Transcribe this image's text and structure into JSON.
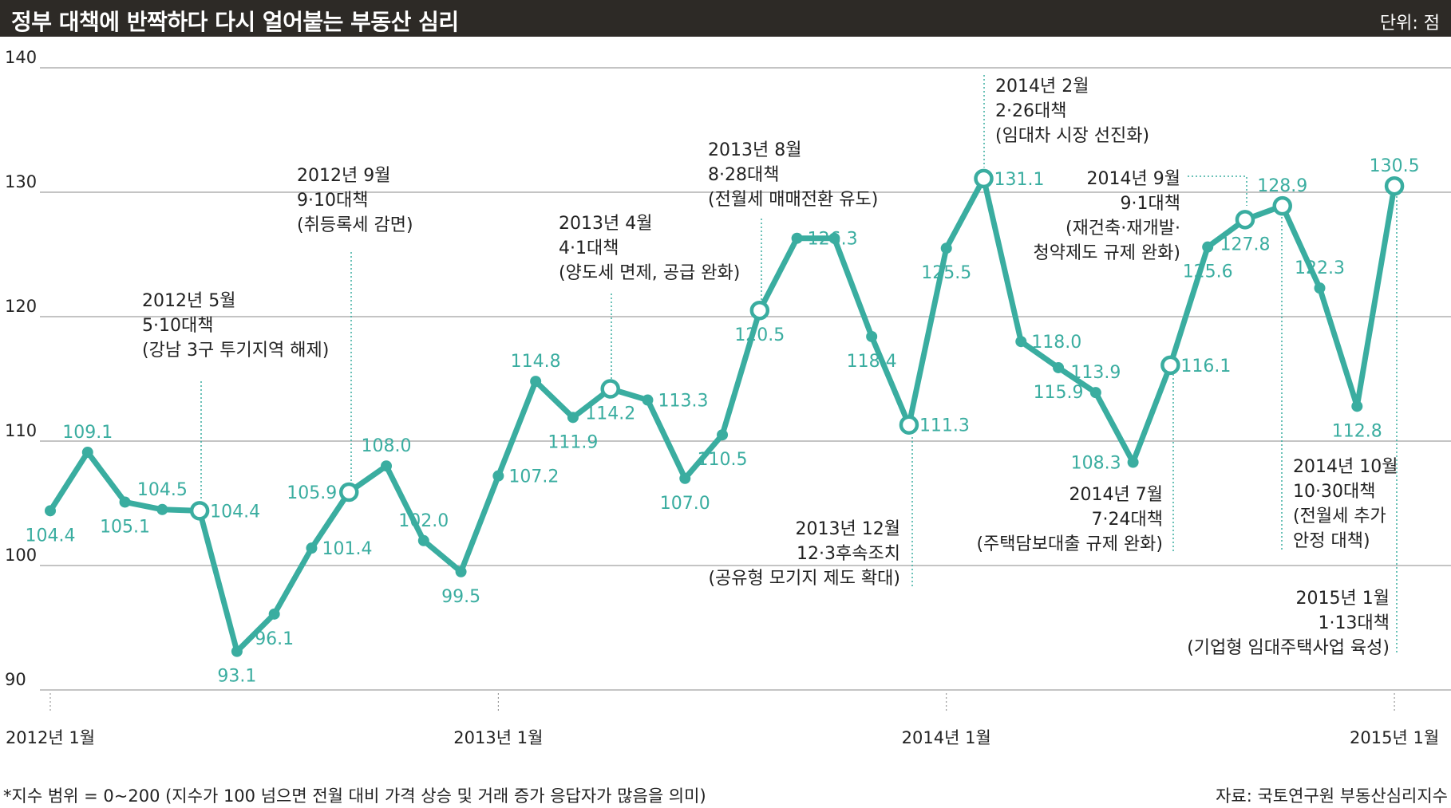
{
  "header": {
    "title": "정부 대책에 반짝하다 다시 얼어붙는 부동산 심리",
    "unit": "단위: 점"
  },
  "footer": {
    "note": "*지수 범위 = 0~200 (지수가 100 넘으면 전월 대비 가격 상승 및 거래 증가 응답자가 많음을 의미)",
    "source": "자료: 국토연구원 부동산심리지수"
  },
  "colors": {
    "line": "#3aada0",
    "value_label": "#3aada0",
    "grid": "#888888",
    "text": "#222222",
    "title_bg": "#2d2a26"
  },
  "chart_data": {
    "type": "line",
    "title": "정부 대책에 반짝하다 다시 얼어붙는 부동산 심리",
    "ylabel": "",
    "xlabel": "",
    "ylim": [
      90,
      140
    ],
    "yticks": [
      90,
      100,
      110,
      120,
      130,
      140
    ],
    "x_tick_labels": [
      {
        "index": 0,
        "label": "2012년 1월"
      },
      {
        "index": 12,
        "label": "2013년 1월"
      },
      {
        "index": 24,
        "label": "2014년 1월"
      },
      {
        "index": 36,
        "label": "2015년 1월"
      }
    ],
    "grid": true,
    "series": [
      {
        "months": [
          "2012-01",
          "2012-02",
          "2012-03",
          "2012-04",
          "2012-05",
          "2012-06",
          "2012-07",
          "2012-08",
          "2012-09",
          "2012-10",
          "2012-11",
          "2012-12",
          "2013-01",
          "2013-02",
          "2013-03",
          "2013-04",
          "2013-05",
          "2013-06",
          "2013-07",
          "2013-08",
          "2013-09",
          "2013-10",
          "2013-11",
          "2013-12",
          "2014-01",
          "2014-02",
          "2014-03",
          "2014-04",
          "2014-05",
          "2014-06",
          "2014-07",
          "2014-08",
          "2014-09",
          "2014-10",
          "2014-11",
          "2014-12",
          "2015-01"
        ],
        "values": [
          104.4,
          109.1,
          105.1,
          104.5,
          104.4,
          93.1,
          96.1,
          101.4,
          105.9,
          108.0,
          102.0,
          99.5,
          107.2,
          114.8,
          111.9,
          114.2,
          113.3,
          107.0,
          110.5,
          120.5,
          126.3,
          126.3,
          118.4,
          111.3,
          125.5,
          131.1,
          118.0,
          115.9,
          113.9,
          108.3,
          116.1,
          125.6,
          127.8,
          128.9,
          122.3,
          112.8,
          130.5
        ],
        "labels": [
          "104.4",
          "109.1",
          "105.1",
          "104.5",
          "104.4",
          "93.1",
          "96.1",
          "101.4",
          "105.9",
          "108.0",
          "102.0",
          "99.5",
          "107.2",
          "114.8",
          "111.9",
          "114.2",
          "113.3",
          "107.0",
          "110.5",
          "120.5",
          "126.3",
          "",
          "118.4",
          "111.3",
          "125.5",
          "131.1",
          "118.0",
          "115.9",
          "113.9",
          "108.3",
          "116.1",
          "125.6",
          "127.8",
          "128.9",
          "122.3",
          "112.8",
          "130.5"
        ],
        "label_pos": [
          "below",
          "above",
          "below",
          "above",
          "right",
          "below",
          "below",
          "right",
          "left",
          "above",
          "above",
          "below",
          "right",
          "above",
          "below",
          "below",
          "right",
          "below",
          "below",
          "below",
          "right",
          "none",
          "below",
          "right",
          "below",
          "right",
          "right",
          "below",
          "above",
          "left",
          "right",
          "below",
          "below",
          "above",
          "above",
          "below",
          "above"
        ],
        "event_points": [
          4,
          8,
          15,
          19,
          23,
          25,
          30,
          32,
          33,
          36
        ]
      }
    ],
    "annotations": [
      {
        "index": 4,
        "lines": [
          "2012년 5월",
          "5·10대책",
          "(강남 3구 투기지역 해제)"
        ]
      },
      {
        "index": 8,
        "lines": [
          "2012년 9월",
          "9·10대책",
          "(취등록세 감면)"
        ]
      },
      {
        "index": 15,
        "lines": [
          "2013년 4월",
          "4·1대책",
          "(양도세 면제, 공급 완화)"
        ]
      },
      {
        "index": 19,
        "lines": [
          "2013년 8월",
          "8·28대책",
          "(전월세 매매전환 유도)"
        ]
      },
      {
        "index": 23,
        "lines": [
          "2013년 12월",
          "12·3후속조치",
          "(공유형 모기지 제도 확대)"
        ]
      },
      {
        "index": 25,
        "lines": [
          "2014년 2월",
          "2·26대책",
          "(임대차 시장 선진화)"
        ]
      },
      {
        "index": 32,
        "lines": [
          "2014년 9월",
          "9·1대책",
          "(재건축·재개발·",
          "청약제도 규제 완화)"
        ]
      },
      {
        "index": 30,
        "lines": [
          "2014년 7월",
          "7·24대책",
          "(주택담보대출 규제 완화)"
        ]
      },
      {
        "index": 33,
        "lines": [
          "2014년 10월",
          "10·30대책",
          "(전월세 추가",
          "안정 대책)"
        ]
      },
      {
        "index": 36,
        "lines": [
          "2015년 1월",
          "1·13대책",
          "(기업형 임대주택사업 육성)"
        ]
      }
    ]
  }
}
